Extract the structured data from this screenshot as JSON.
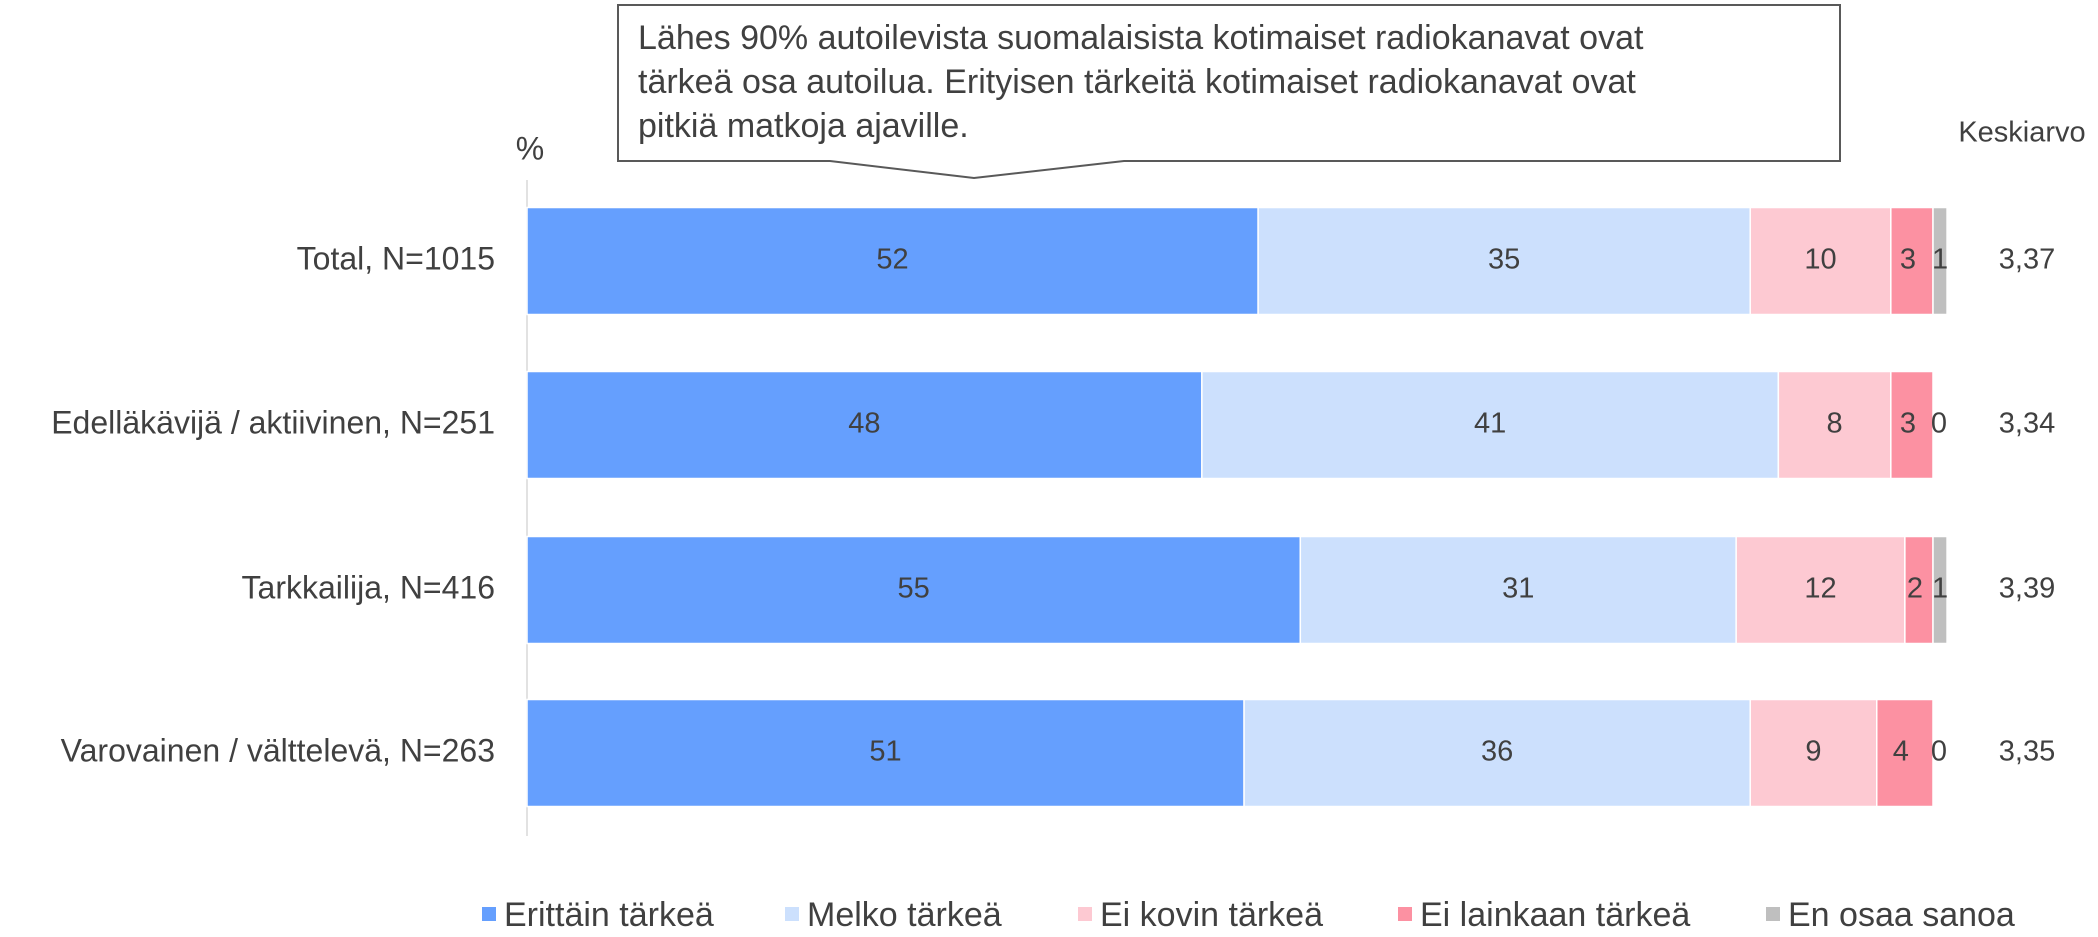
{
  "chart_data": {
    "type": "stacked_barh",
    "annotation": [
      "Lähes 90% autoilevista suomalaisista kotimaiset radiokanavat ovat",
      "tärkeä osa autoilua. Erityisen tärkeitä kotimaiset radiokanavat ovat",
      "pitkiä matkoja ajaville."
    ],
    "unit_label": "%",
    "categories": [
      "Total, N=1015",
      "Edelläkävijä / aktiivinen, N=251",
      "Tarkkailija, N=416",
      "Varovainen / välttelevä, N=263"
    ],
    "series": [
      {
        "name": "Erittäin tärkeä",
        "color": "#659ffe",
        "values": [
          52,
          48,
          55,
          51
        ]
      },
      {
        "name": "Melko tärkeä",
        "color": "#cce0fd",
        "values": [
          35,
          41,
          31,
          36
        ]
      },
      {
        "name": "Ei kovin tärkeä",
        "color": "#fdc9d2",
        "values": [
          10,
          8,
          12,
          9
        ]
      },
      {
        "name": "Ei lainkaan tärkeä",
        "color": "#fc91a2",
        "values": [
          3,
          3,
          2,
          4
        ]
      },
      {
        "name": "En osaa sanoa",
        "color": "#bfbfbf",
        "values": [
          1,
          0,
          1,
          0
        ]
      }
    ],
    "xlim": [
      0,
      100
    ],
    "averages": {
      "title": "Keskiarvo",
      "values": [
        3.37,
        3.34,
        3.39,
        3.35
      ],
      "value_labels": [
        "3,37",
        "3,34",
        "3,39",
        "3,35"
      ]
    }
  }
}
